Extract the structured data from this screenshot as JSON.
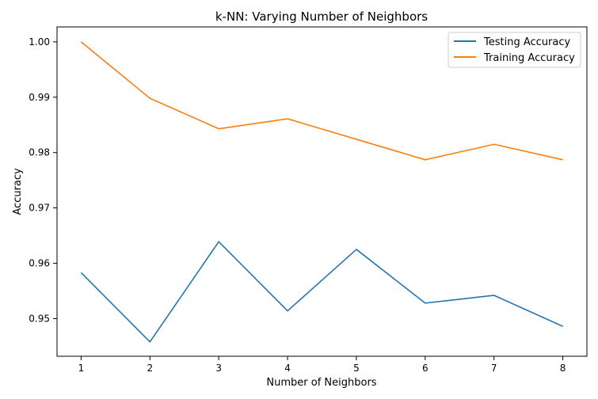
{
  "chart_data": {
    "type": "line",
    "title": "k-NN: Varying Number of Neighbors",
    "xlabel": "Number of Neighbors",
    "ylabel": "Accuracy",
    "x": [
      1,
      2,
      3,
      4,
      5,
      6,
      7,
      8
    ],
    "xlim": [
      0.65,
      8.35
    ],
    "ylim": [
      0.9432,
      1.0027
    ],
    "xticks": [
      1,
      2,
      3,
      4,
      5,
      6,
      7,
      8
    ],
    "yticks": [
      0.95,
      0.96,
      0.97,
      0.98,
      0.99,
      1.0
    ],
    "ytick_labels": [
      "0.95",
      "0.96",
      "0.97",
      "0.98",
      "0.99",
      "1.00"
    ],
    "grid": false,
    "legend_position": "top-right",
    "series": [
      {
        "name": "Testing Accuracy",
        "color": "#1f77b4",
        "values": [
          0.9583,
          0.9458,
          0.9639,
          0.9514,
          0.9625,
          0.9528,
          0.9542,
          0.9486
        ]
      },
      {
        "name": "Training Accuracy",
        "color": "#ff7f0e",
        "values": [
          1.0,
          0.9898,
          0.9843,
          0.9861,
          0.9824,
          0.9787,
          0.9815,
          0.9787
        ]
      }
    ]
  }
}
